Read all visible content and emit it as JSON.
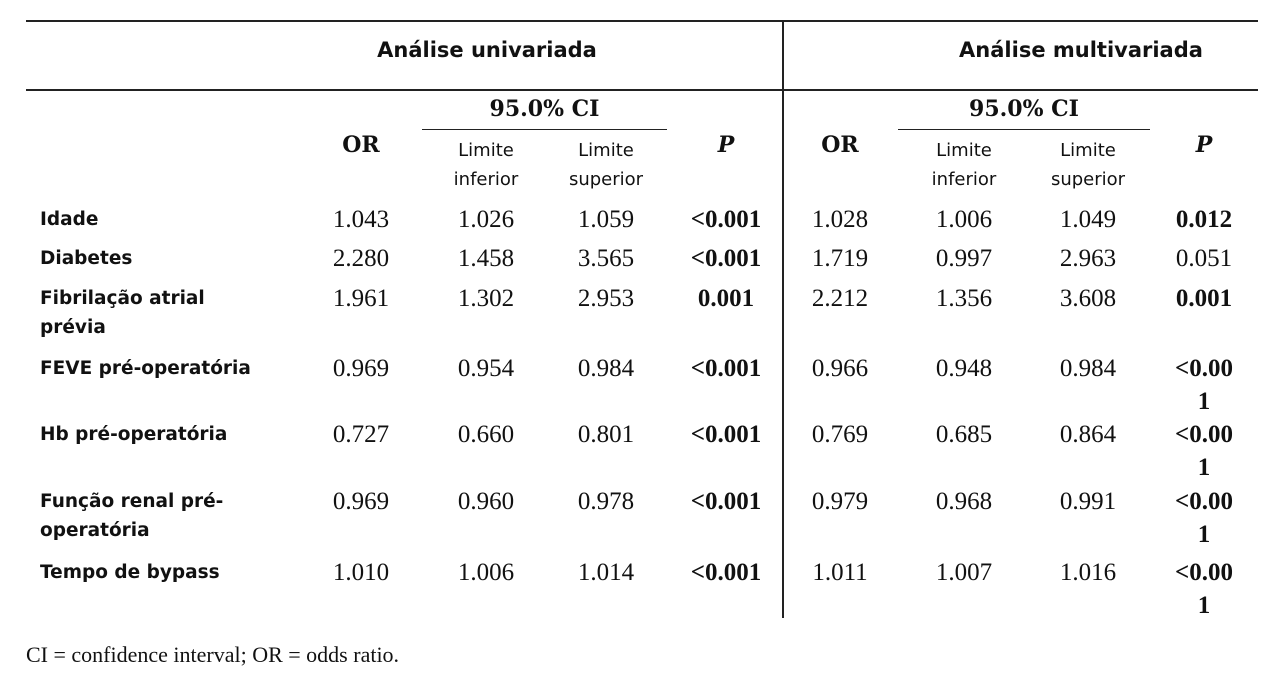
{
  "header": {
    "univariate": "Análise univariada",
    "multivariate": "Análise multivariada"
  },
  "subheader": {
    "ci": "95.0% CI",
    "or": "OR",
    "p": "P",
    "lower": "Limite\ninferior",
    "upper": "Limite\nsuperior"
  },
  "rows": [
    {
      "label": "Idade",
      "u_or": "1.043",
      "u_lo": "1.026",
      "u_hi": "1.059",
      "u_p": "<0.001",
      "m_or": "1.028",
      "m_lo": "1.006",
      "m_hi": "1.049",
      "m_p": "0.012"
    },
    {
      "label": "Diabetes",
      "u_or": "2.280",
      "u_lo": "1.458",
      "u_hi": "3.565",
      "u_p": "<0.001",
      "m_or": "1.719",
      "m_lo": "0.997",
      "m_hi": "2.963",
      "m_p": "0.051"
    },
    {
      "label": "Fibrilação atrial\nprévia",
      "u_or": "1.961",
      "u_lo": "1.302",
      "u_hi": "2.953",
      "u_p": "0.001",
      "m_or": "2.212",
      "m_lo": "1.356",
      "m_hi": "3.608",
      "m_p": "0.001"
    },
    {
      "label": "FEVE pré-operatória",
      "u_or": "0.969",
      "u_lo": "0.954",
      "u_hi": "0.984",
      "u_p": "<0.001",
      "m_or": "0.966",
      "m_lo": "0.948",
      "m_hi": "0.984",
      "m_p": "<0.00\n1"
    },
    {
      "label": "Hb pré-operatória",
      "u_or": "0.727",
      "u_lo": "0.660",
      "u_hi": "0.801",
      "u_p": "<0.001",
      "m_or": "0.769",
      "m_lo": "0.685",
      "m_hi": "0.864",
      "m_p": "<0.00\n1"
    },
    {
      "label": "Função renal pré-\noperatória",
      "u_or": "0.969",
      "u_lo": "0.960",
      "u_hi": "0.978",
      "u_p": "<0.001",
      "m_or": "0.979",
      "m_lo": "0.968",
      "m_hi": "0.991",
      "m_p": "<0.00\n1"
    },
    {
      "label": "Tempo de bypass",
      "u_or": "1.010",
      "u_lo": "1.006",
      "u_hi": "1.014",
      "u_p": "<0.001",
      "m_or": "1.011",
      "m_lo": "1.007",
      "m_hi": "1.016",
      "m_p": "<0.00\n1"
    }
  ],
  "footnote": "CI = confidence interval; OR = odds ratio."
}
